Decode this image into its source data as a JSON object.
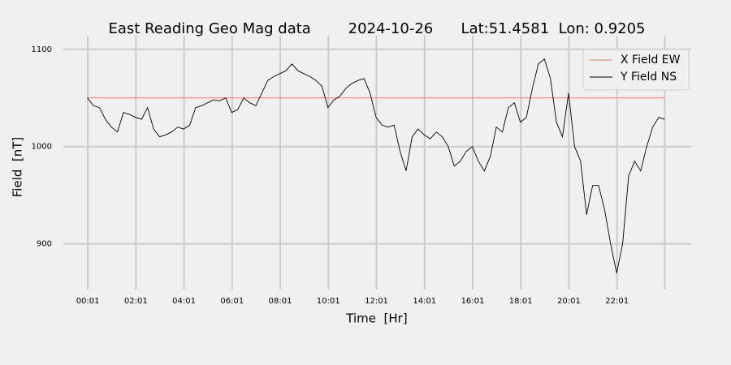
{
  "chart_data": {
    "type": "line",
    "title": "East Reading Geo Mag data        2024-10-26      Lat:51.4581  Lon: 0.9205",
    "xlabel": "Time  [Hr]",
    "ylabel": "Field  [nT]",
    "xlim": [
      -1.0,
      25.1
    ],
    "ylim": [
      863,
      1114
    ],
    "xticks": [
      {
        "value": 0.0167,
        "label": "00:01"
      },
      {
        "value": 2.0167,
        "label": "02:01"
      },
      {
        "value": 4.0167,
        "label": "04:01"
      },
      {
        "value": 6.0167,
        "label": "06:01"
      },
      {
        "value": 8.0167,
        "label": "08:01"
      },
      {
        "value": 10.0167,
        "label": "10:01"
      },
      {
        "value": 12.0167,
        "label": "12:01"
      },
      {
        "value": 14.0167,
        "label": "14:01"
      },
      {
        "value": 16.0167,
        "label": "16:01"
      },
      {
        "value": 18.0167,
        "label": "18:01"
      },
      {
        "value": 20.0167,
        "label": "20:01"
      },
      {
        "value": 22.0167,
        "label": "22:01"
      },
      {
        "value": 24.0,
        "label": null
      }
    ],
    "yticks": [
      900,
      1000,
      1100
    ],
    "grid": true,
    "legend": "upper right",
    "series": [
      {
        "name": "X Field EW",
        "color": "#e8756a",
        "x": [
          0,
          24
        ],
        "values": [
          1050,
          1050
        ]
      },
      {
        "name": "Y Field NS",
        "color": "#000000",
        "x": [
          0,
          0.25,
          0.5,
          0.75,
          1,
          1.25,
          1.5,
          1.75,
          2,
          2.25,
          2.5,
          2.75,
          3,
          3.25,
          3.5,
          3.75,
          4,
          4.25,
          4.5,
          4.75,
          5,
          5.25,
          5.5,
          5.75,
          6,
          6.25,
          6.5,
          6.75,
          7,
          7.25,
          7.5,
          7.75,
          8,
          8.25,
          8.5,
          8.75,
          9,
          9.25,
          9.5,
          9.75,
          10,
          10.25,
          10.5,
          10.75,
          11,
          11.25,
          11.5,
          11.75,
          12,
          12.25,
          12.5,
          12.75,
          13,
          13.25,
          13.5,
          13.75,
          14,
          14.25,
          14.5,
          14.75,
          15,
          15.25,
          15.5,
          15.75,
          16,
          16.25,
          16.5,
          16.75,
          17,
          17.25,
          17.5,
          17.75,
          18,
          18.25,
          18.5,
          18.75,
          19,
          19.25,
          19.5,
          19.75,
          20,
          20.25,
          20.5,
          20.75,
          21,
          21.25,
          21.5,
          21.75,
          22,
          22.25,
          22.5,
          22.75,
          23,
          23.25,
          23.5,
          23.75,
          24
        ],
        "values": [
          1050,
          1042,
          1040,
          1028,
          1020,
          1015,
          1035,
          1033,
          1030,
          1028,
          1040,
          1018,
          1010,
          1012,
          1015,
          1020,
          1018,
          1022,
          1040,
          1042,
          1045,
          1048,
          1047,
          1050,
          1035,
          1038,
          1050,
          1045,
          1042,
          1055,
          1068,
          1072,
          1075,
          1078,
          1085,
          1078,
          1075,
          1072,
          1068,
          1062,
          1040,
          1048,
          1052,
          1060,
          1065,
          1068,
          1070,
          1055,
          1030,
          1022,
          1020,
          1022,
          995,
          975,
          1010,
          1018,
          1012,
          1008,
          1015,
          1010,
          1000,
          980,
          985,
          995,
          1000,
          985,
          975,
          990,
          1020,
          1015,
          1040,
          1045,
          1025,
          1030,
          1060,
          1085,
          1090,
          1070,
          1025,
          1010,
          1055,
          1000,
          985,
          930,
          960,
          960,
          935,
          900,
          870,
          900,
          970,
          985,
          975,
          1000,
          1020,
          1030,
          1028
        ]
      }
    ]
  }
}
